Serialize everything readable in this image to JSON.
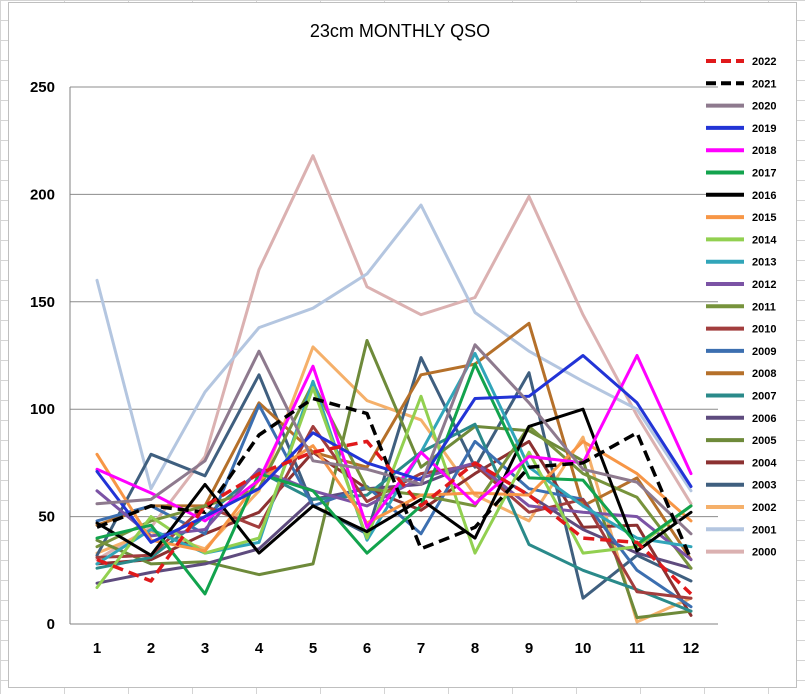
{
  "chart_data": {
    "type": "line",
    "title": "23cm MONTHLY QSO",
    "xlabel": "",
    "ylabel": "",
    "categories": [
      "1",
      "2",
      "3",
      "4",
      "5",
      "6",
      "7",
      "8",
      "9",
      "10",
      "11",
      "12"
    ],
    "ylim": [
      0,
      250
    ],
    "yticks": [
      0,
      50,
      100,
      150,
      200,
      250
    ],
    "grid": "horizontal",
    "legend": "right",
    "series": [
      {
        "name": "2022",
        "color": "#e0191b",
        "dash": true,
        "values": [
          30,
          20,
          55,
          70,
          80,
          85,
          55,
          75,
          60,
          40,
          38,
          14
        ]
      },
      {
        "name": "2021",
        "color": "#000000",
        "dash": true,
        "values": [
          45,
          55,
          52,
          88,
          105,
          98,
          35,
          45,
          73,
          75,
          89,
          30
        ]
      },
      {
        "name": "2020",
        "color": "#8e7a8e",
        "dash": false,
        "values": [
          56,
          58,
          76,
          127,
          76,
          72,
          65,
          130,
          103,
          72,
          66,
          42
        ]
      },
      {
        "name": "2019",
        "color": "#2234d6",
        "dash": false,
        "values": [
          71,
          38,
          50,
          63,
          89,
          75,
          67,
          105,
          106,
          125,
          103,
          64
        ]
      },
      {
        "name": "2018",
        "color": "#ff00ff",
        "dash": false,
        "values": [
          72,
          61,
          48,
          67,
          120,
          45,
          80,
          56,
          78,
          75,
          125,
          70
        ]
      },
      {
        "name": "2017",
        "color": "#12a34d",
        "dash": false,
        "values": [
          40,
          46,
          14,
          70,
          62,
          33,
          55,
          121,
          68,
          67,
          37,
          55
        ]
      },
      {
        "name": "2016",
        "color": "#000000",
        "dash": false,
        "values": [
          47,
          32,
          65,
          33,
          55,
          43,
          58,
          40,
          92,
          100,
          34,
          52
        ]
      },
      {
        "name": "2015",
        "color": "#f79646",
        "dash": false,
        "values": [
          79,
          39,
          34,
          67,
          83,
          47,
          60,
          61,
          60,
          85,
          70,
          48
        ]
      },
      {
        "name": "2014",
        "color": "#92d050",
        "dash": false,
        "values": [
          17,
          50,
          33,
          40,
          110,
          40,
          106,
          33,
          80,
          33,
          36,
          55
        ]
      },
      {
        "name": "2013",
        "color": "#31a5b9",
        "dash": false,
        "values": [
          28,
          44,
          33,
          38,
          113,
          39,
          80,
          126,
          73,
          55,
          40,
          36
        ]
      },
      {
        "name": "2012",
        "color": "#7b53a5",
        "dash": false,
        "values": [
          62,
          41,
          44,
          72,
          62,
          55,
          68,
          75,
          55,
          52,
          50,
          30
        ]
      },
      {
        "name": "2011",
        "color": "#77933c",
        "dash": false,
        "values": [
          36,
          48,
          55,
          63,
          112,
          63,
          60,
          55,
          92,
          70,
          59,
          26
        ]
      },
      {
        "name": "2010",
        "color": "#a23d3d",
        "dash": false,
        "values": [
          31,
          32,
          55,
          45,
          92,
          57,
          70,
          74,
          52,
          58,
          15,
          12
        ]
      },
      {
        "name": "2009",
        "color": "#3c6fb0",
        "dash": false,
        "values": [
          48,
          55,
          42,
          102,
          55,
          64,
          42,
          85,
          63,
          58,
          25,
          8
        ]
      },
      {
        "name": "2008",
        "color": "#b5702a",
        "dash": false,
        "values": [
          46,
          55,
          55,
          103,
          80,
          73,
          116,
          121,
          140,
          55,
          68,
          30
        ]
      },
      {
        "name": "2007",
        "color": "#2a8a8a",
        "dash": false,
        "values": [
          26,
          31,
          50,
          71,
          58,
          60,
          80,
          93,
          37,
          25,
          16,
          6
        ]
      },
      {
        "name": "2006",
        "color": "#5e4b7e",
        "dash": false,
        "values": [
          19,
          24,
          28,
          35,
          58,
          63,
          65,
          75,
          60,
          44,
          33,
          26
        ]
      },
      {
        "name": "2005",
        "color": "#6e8a3a",
        "dash": false,
        "values": [
          39,
          28,
          29,
          23,
          28,
          132,
          73,
          92,
          90,
          76,
          3,
          6
        ]
      },
      {
        "name": "2004",
        "color": "#8c3131",
        "dash": false,
        "values": [
          28,
          30,
          42,
          52,
          80,
          63,
          53,
          70,
          85,
          45,
          46,
          4
        ]
      },
      {
        "name": "2003",
        "color": "#3f5f7f",
        "dash": false,
        "values": [
          32,
          79,
          69,
          116,
          55,
          42,
          124,
          73,
          117,
          12,
          32,
          20
        ]
      },
      {
        "name": "2002",
        "color": "#f5b06a",
        "dash": false,
        "values": [
          33,
          43,
          35,
          62,
          129,
          104,
          95,
          60,
          48,
          87,
          1,
          12
        ]
      },
      {
        "name": "2001",
        "color": "#b4c6e0",
        "dash": false,
        "values": [
          160,
          63,
          108,
          138,
          147,
          163,
          195,
          145,
          127,
          113,
          100,
          62
        ]
      },
      {
        "name": "2000",
        "color": "#dbb1b1",
        "dash": false,
        "values": [
          30,
          45,
          78,
          165,
          218,
          157,
          144,
          152,
          199,
          144,
          97,
          56
        ]
      }
    ]
  }
}
